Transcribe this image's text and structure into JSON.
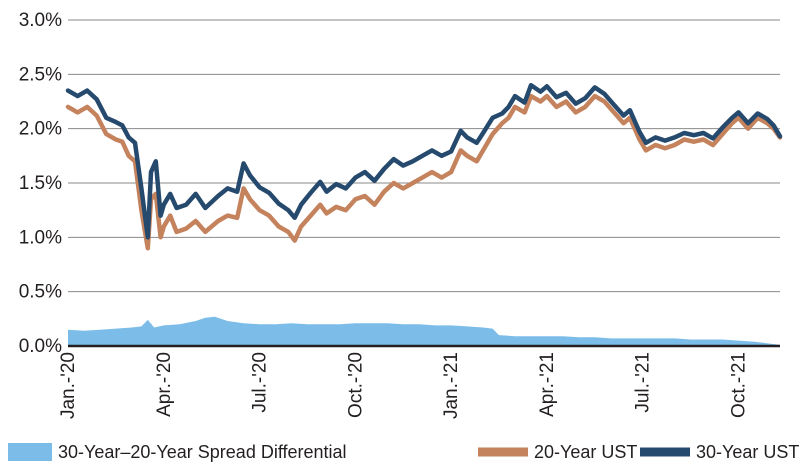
{
  "chart_data": {
    "type": "line",
    "title": "",
    "xlabel": "",
    "ylabel": "",
    "ylim": [
      0,
      3.0
    ],
    "y_ticks": [
      "0.0%",
      "0.5%",
      "1.0%",
      "1.5%",
      "2.0%",
      "2.5%",
      "3.0%"
    ],
    "x_ticks": [
      "Jan.-'20",
      "Apr.-'20",
      "Jul.-'20",
      "Oct.-'20",
      "Jan.-'21",
      "Apr.-'21",
      "Jul.-'21",
      "Oct.-'21"
    ],
    "x_tick_positions": [
      0,
      3,
      6,
      9,
      12,
      15,
      18,
      21
    ],
    "xlim": [
      0,
      22.3
    ],
    "grid": "horizontal",
    "legend_position": "bottom",
    "x_units": "months since Jan. 2020",
    "series": [
      {
        "name": "30-Year–20-Year Spread Differential",
        "type": "area",
        "color": "#7cbce8",
        "points": [
          [
            0,
            0.15
          ],
          [
            0.5,
            0.14
          ],
          [
            1,
            0.15
          ],
          [
            1.5,
            0.16
          ],
          [
            2,
            0.17
          ],
          [
            2.3,
            0.18
          ],
          [
            2.5,
            0.24
          ],
          [
            2.7,
            0.17
          ],
          [
            3,
            0.19
          ],
          [
            3.5,
            0.2
          ],
          [
            4,
            0.23
          ],
          [
            4.3,
            0.26
          ],
          [
            4.6,
            0.27
          ],
          [
            5,
            0.23
          ],
          [
            5.5,
            0.21
          ],
          [
            6,
            0.2
          ],
          [
            6.5,
            0.2
          ],
          [
            7,
            0.21
          ],
          [
            7.5,
            0.2
          ],
          [
            8,
            0.2
          ],
          [
            8.5,
            0.2
          ],
          [
            9,
            0.21
          ],
          [
            9.5,
            0.21
          ],
          [
            10,
            0.21
          ],
          [
            10.5,
            0.2
          ],
          [
            11,
            0.2
          ],
          [
            11.5,
            0.19
          ],
          [
            12,
            0.19
          ],
          [
            12.5,
            0.18
          ],
          [
            13,
            0.17
          ],
          [
            13.3,
            0.16
          ],
          [
            13.5,
            0.1
          ],
          [
            14,
            0.09
          ],
          [
            14.5,
            0.09
          ],
          [
            15,
            0.09
          ],
          [
            15.5,
            0.09
          ],
          [
            16,
            0.08
          ],
          [
            16.5,
            0.08
          ],
          [
            17,
            0.07
          ],
          [
            17.5,
            0.07
          ],
          [
            18,
            0.07
          ],
          [
            18.5,
            0.07
          ],
          [
            19,
            0.07
          ],
          [
            19.5,
            0.06
          ],
          [
            20,
            0.06
          ],
          [
            20.5,
            0.06
          ],
          [
            21,
            0.05
          ],
          [
            21.5,
            0.04
          ],
          [
            22.3,
            0.01
          ]
        ]
      },
      {
        "name": "20-Year UST",
        "type": "line",
        "color": "#c4825d",
        "points": [
          [
            0,
            2.2
          ],
          [
            0.3,
            2.15
          ],
          [
            0.6,
            2.2
          ],
          [
            0.9,
            2.12
          ],
          [
            1.2,
            1.95
          ],
          [
            1.5,
            1.9
          ],
          [
            1.7,
            1.88
          ],
          [
            1.9,
            1.75
          ],
          [
            2.1,
            1.7
          ],
          [
            2.3,
            1.25
          ],
          [
            2.5,
            0.9
          ],
          [
            2.6,
            1.35
          ],
          [
            2.75,
            1.4
          ],
          [
            2.9,
            1.0
          ],
          [
            3.0,
            1.1
          ],
          [
            3.2,
            1.2
          ],
          [
            3.4,
            1.05
          ],
          [
            3.7,
            1.08
          ],
          [
            4.0,
            1.15
          ],
          [
            4.3,
            1.05
          ],
          [
            4.7,
            1.15
          ],
          [
            5.0,
            1.2
          ],
          [
            5.3,
            1.18
          ],
          [
            5.5,
            1.45
          ],
          [
            5.7,
            1.35
          ],
          [
            6.0,
            1.25
          ],
          [
            6.3,
            1.2
          ],
          [
            6.6,
            1.1
          ],
          [
            6.9,
            1.05
          ],
          [
            7.1,
            0.97
          ],
          [
            7.3,
            1.1
          ],
          [
            7.6,
            1.2
          ],
          [
            7.9,
            1.3
          ],
          [
            8.1,
            1.22
          ],
          [
            8.4,
            1.28
          ],
          [
            8.7,
            1.25
          ],
          [
            9.0,
            1.35
          ],
          [
            9.3,
            1.38
          ],
          [
            9.6,
            1.3
          ],
          [
            9.9,
            1.42
          ],
          [
            10.2,
            1.5
          ],
          [
            10.5,
            1.45
          ],
          [
            10.8,
            1.5
          ],
          [
            11.1,
            1.55
          ],
          [
            11.4,
            1.6
          ],
          [
            11.7,
            1.55
          ],
          [
            12.0,
            1.6
          ],
          [
            12.3,
            1.8
          ],
          [
            12.5,
            1.75
          ],
          [
            12.8,
            1.7
          ],
          [
            13.0,
            1.8
          ],
          [
            13.3,
            1.95
          ],
          [
            13.6,
            2.05
          ],
          [
            13.8,
            2.1
          ],
          [
            14.0,
            2.2
          ],
          [
            14.3,
            2.15
          ],
          [
            14.5,
            2.3
          ],
          [
            14.8,
            2.25
          ],
          [
            15.0,
            2.3
          ],
          [
            15.3,
            2.2
          ],
          [
            15.6,
            2.25
          ],
          [
            15.9,
            2.15
          ],
          [
            16.2,
            2.2
          ],
          [
            16.5,
            2.3
          ],
          [
            16.8,
            2.25
          ],
          [
            17.1,
            2.15
          ],
          [
            17.4,
            2.05
          ],
          [
            17.6,
            2.1
          ],
          [
            17.9,
            1.9
          ],
          [
            18.1,
            1.8
          ],
          [
            18.4,
            1.85
          ],
          [
            18.7,
            1.82
          ],
          [
            19.0,
            1.85
          ],
          [
            19.3,
            1.9
          ],
          [
            19.6,
            1.88
          ],
          [
            19.9,
            1.9
          ],
          [
            20.2,
            1.85
          ],
          [
            20.5,
            1.95
          ],
          [
            20.8,
            2.05
          ],
          [
            21.0,
            2.1
          ],
          [
            21.3,
            2.0
          ],
          [
            21.6,
            2.1
          ],
          [
            21.9,
            2.05
          ],
          [
            22.1,
            2.0
          ],
          [
            22.3,
            1.92
          ]
        ]
      },
      {
        "name": "30-Year UST",
        "type": "line",
        "color": "#264a6e",
        "points": [
          [
            0,
            2.35
          ],
          [
            0.3,
            2.3
          ],
          [
            0.6,
            2.35
          ],
          [
            0.9,
            2.27
          ],
          [
            1.2,
            2.1
          ],
          [
            1.5,
            2.06
          ],
          [
            1.7,
            2.03
          ],
          [
            1.9,
            1.92
          ],
          [
            2.1,
            1.87
          ],
          [
            2.3,
            1.45
          ],
          [
            2.5,
            1.0
          ],
          [
            2.6,
            1.6
          ],
          [
            2.75,
            1.7
          ],
          [
            2.9,
            1.2
          ],
          [
            3.0,
            1.3
          ],
          [
            3.2,
            1.4
          ],
          [
            3.4,
            1.27
          ],
          [
            3.7,
            1.3
          ],
          [
            4.0,
            1.4
          ],
          [
            4.3,
            1.27
          ],
          [
            4.7,
            1.38
          ],
          [
            5.0,
            1.45
          ],
          [
            5.3,
            1.42
          ],
          [
            5.5,
            1.68
          ],
          [
            5.7,
            1.57
          ],
          [
            6.0,
            1.46
          ],
          [
            6.3,
            1.41
          ],
          [
            6.6,
            1.31
          ],
          [
            6.9,
            1.25
          ],
          [
            7.1,
            1.18
          ],
          [
            7.3,
            1.3
          ],
          [
            7.6,
            1.41
          ],
          [
            7.9,
            1.51
          ],
          [
            8.1,
            1.42
          ],
          [
            8.4,
            1.49
          ],
          [
            8.7,
            1.45
          ],
          [
            9.0,
            1.55
          ],
          [
            9.3,
            1.6
          ],
          [
            9.6,
            1.52
          ],
          [
            9.9,
            1.63
          ],
          [
            10.2,
            1.72
          ],
          [
            10.5,
            1.66
          ],
          [
            10.8,
            1.7
          ],
          [
            11.1,
            1.75
          ],
          [
            11.4,
            1.8
          ],
          [
            11.7,
            1.75
          ],
          [
            12.0,
            1.79
          ],
          [
            12.3,
            1.98
          ],
          [
            12.5,
            1.92
          ],
          [
            12.8,
            1.87
          ],
          [
            13.0,
            1.96
          ],
          [
            13.3,
            2.1
          ],
          [
            13.6,
            2.14
          ],
          [
            13.8,
            2.2
          ],
          [
            14.0,
            2.3
          ],
          [
            14.3,
            2.24
          ],
          [
            14.5,
            2.4
          ],
          [
            14.8,
            2.34
          ],
          [
            15.0,
            2.39
          ],
          [
            15.3,
            2.29
          ],
          [
            15.6,
            2.33
          ],
          [
            15.9,
            2.23
          ],
          [
            16.2,
            2.28
          ],
          [
            16.5,
            2.38
          ],
          [
            16.8,
            2.32
          ],
          [
            17.1,
            2.22
          ],
          [
            17.4,
            2.12
          ],
          [
            17.6,
            2.17
          ],
          [
            17.9,
            1.97
          ],
          [
            18.1,
            1.87
          ],
          [
            18.4,
            1.92
          ],
          [
            18.7,
            1.89
          ],
          [
            19.0,
            1.92
          ],
          [
            19.3,
            1.96
          ],
          [
            19.6,
            1.94
          ],
          [
            19.9,
            1.96
          ],
          [
            20.2,
            1.91
          ],
          [
            20.5,
            2.01
          ],
          [
            20.8,
            2.1
          ],
          [
            21.0,
            2.15
          ],
          [
            21.3,
            2.05
          ],
          [
            21.6,
            2.14
          ],
          [
            21.9,
            2.09
          ],
          [
            22.1,
            2.03
          ],
          [
            22.3,
            1.93
          ]
        ]
      }
    ]
  }
}
